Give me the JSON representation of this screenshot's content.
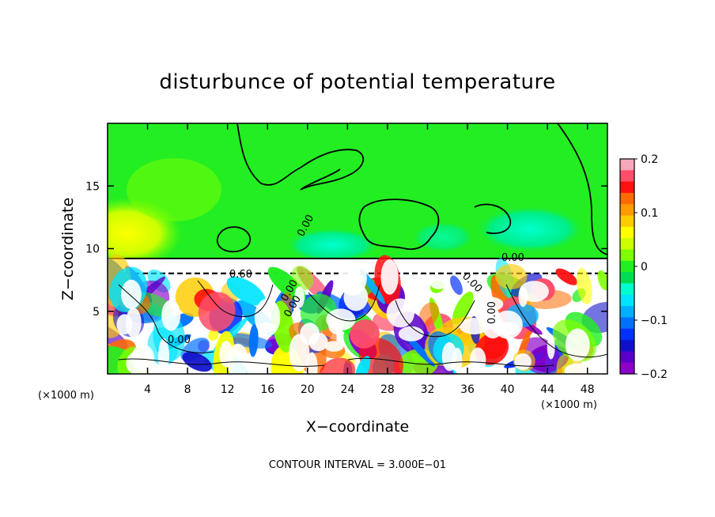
{
  "chart_data": {
    "type": "heatmap",
    "title": "disturbunce of potential temperature",
    "xlabel": "X−coordinate",
    "ylabel": "Z−coordinate",
    "x_unit": "(×1000 m)",
    "z_unit": "(×1000 m)",
    "xlim": [
      0,
      50
    ],
    "ylim": [
      0,
      20
    ],
    "x_ticks": [
      4,
      8,
      12,
      16,
      20,
      24,
      28,
      32,
      36,
      40,
      44,
      48
    ],
    "x_tick_labels": [
      "4",
      "8",
      "12",
      "16",
      "20",
      "24",
      "28",
      "32",
      "36",
      "40",
      "44",
      "48"
    ],
    "y_ticks": [
      5,
      10,
      15
    ],
    "y_tick_labels": [
      "5",
      "10",
      "15"
    ],
    "colorbar": {
      "min": -0.2,
      "max": 0.2,
      "ticks": [
        0.2,
        0.1,
        0,
        -0.1,
        -0.2
      ],
      "tick_labels": [
        "0.2",
        "0.1",
        "0",
        "−0.1",
        "−0.2"
      ],
      "colors": [
        "#f7a8b8",
        "#ff4d6a",
        "#ff1010",
        "#ff6a00",
        "#ff9a00",
        "#ffcc00",
        "#ffff00",
        "#ccff00",
        "#7dff00",
        "#22ee22",
        "#00dd55",
        "#00ffcc",
        "#00e5ff",
        "#00b0ff",
        "#0070ff",
        "#0030ff",
        "#1010cc",
        "#5a00c8",
        "#8c00c8"
      ]
    },
    "contour_interval_text": "CONTOUR INTERVAL = 3.000E−01",
    "contour_labels": [
      "0.00",
      "0.60",
      "0.00",
      "0.00",
      "0.00",
      "0.00",
      "0.00",
      "0.00"
    ],
    "upper_layer_value": 0.01,
    "lower_layer_top_z": 9.0
  }
}
